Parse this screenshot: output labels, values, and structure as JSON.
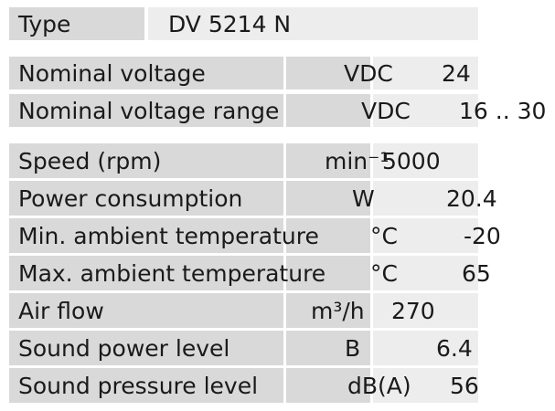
{
  "type_row": {
    "label": "Type",
    "value": "DV 5214 N"
  },
  "voltage_rows": [
    {
      "label": "Nominal voltage",
      "unit": "VDC",
      "value": "24"
    },
    {
      "label": "Nominal voltage range",
      "unit": "VDC",
      "value": "16 .. 30"
    }
  ],
  "spec_rows": [
    {
      "label": "Speed (rpm)",
      "unit": "min⁻¹",
      "value": "5000"
    },
    {
      "label": "Power consumption",
      "unit": "W",
      "value": "20.4"
    },
    {
      "label": "Min. ambient temperature",
      "unit": "°C",
      "value": "-20"
    },
    {
      "label": "Max. ambient temperature",
      "unit": "°C",
      "value": "65"
    },
    {
      "label": "Air flow",
      "unit": "m³/h",
      "value": "270"
    },
    {
      "label": "Sound power level",
      "unit": "B",
      "value": "6.4"
    },
    {
      "label": "Sound pressure level",
      "unit": "dB(A)",
      "value": "56"
    }
  ]
}
